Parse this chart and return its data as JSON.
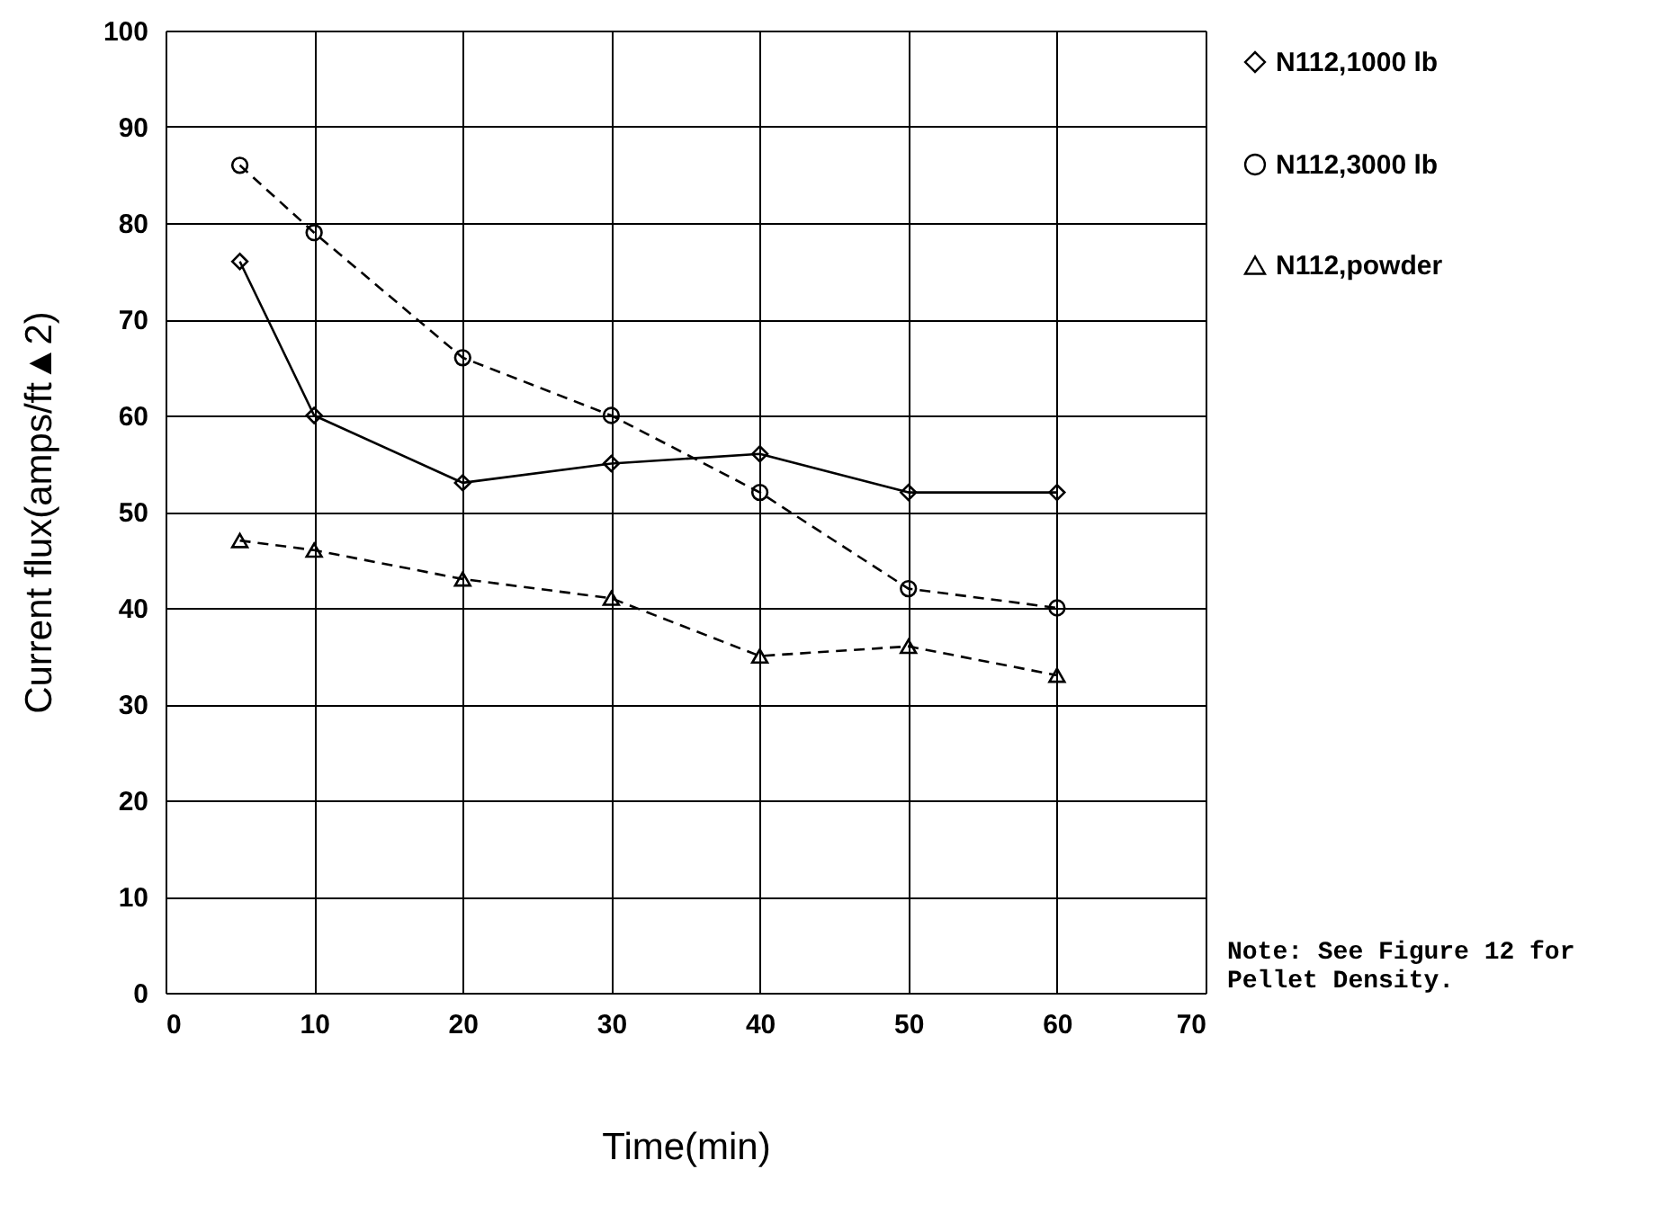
{
  "chart_data": {
    "type": "line",
    "xlabel": "Time(min)",
    "ylabel": "Current flux(amps/ft▲2)",
    "x": [
      5,
      10,
      20,
      30,
      40,
      50,
      60
    ],
    "series": [
      {
        "name": "N112,1000 lb",
        "color": "#000000",
        "values": [
          76,
          60,
          53,
          55,
          56,
          52,
          52
        ],
        "marker": "diamond",
        "line_style": "solid"
      },
      {
        "name": "N112,3000 lb",
        "color": "#000000",
        "values": [
          86,
          79,
          66,
          60,
          52,
          42,
          40
        ],
        "marker": "circle",
        "line_style": "dashed"
      },
      {
        "name": "N112,powder",
        "color": "#000000",
        "values": [
          47,
          46,
          43,
          41,
          35,
          36,
          33
        ],
        "marker": "triangle",
        "line_style": "dashed"
      }
    ],
    "xlim": [
      0,
      70
    ],
    "xticks": [
      0,
      10,
      20,
      30,
      40,
      50,
      60,
      70
    ],
    "ylim": [
      0,
      100
    ],
    "yticks": [
      0,
      10,
      20,
      30,
      40,
      50,
      60,
      70,
      80,
      90,
      100
    ],
    "grid": true,
    "legend": "right",
    "annotations": [
      "Note: See Figure 12 for\nPellet Density."
    ]
  }
}
